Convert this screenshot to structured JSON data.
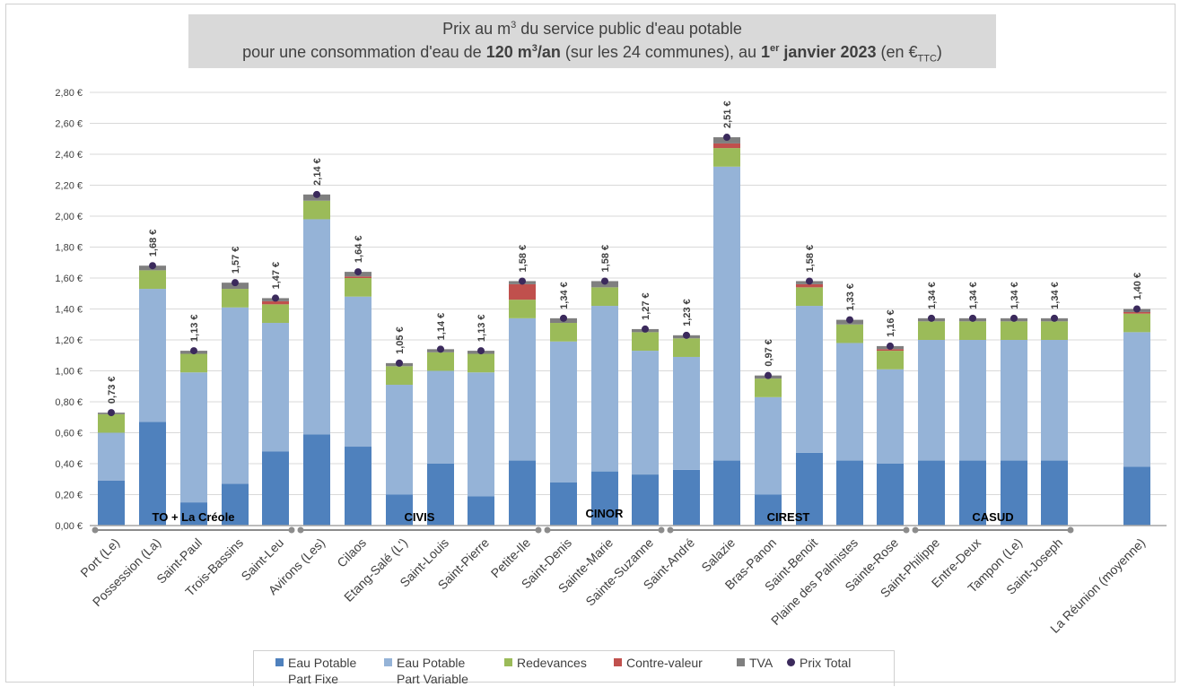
{
  "chart_data": {
    "type": "bar",
    "title": {
      "line1_prefix": "Prix au m",
      "line1_sup": "3",
      "line1_suffix": " du service public d'eau potable",
      "line2_a": "pour une consommation d'eau de ",
      "line2_bold1": "120 m",
      "line2_bold1_sup": "3",
      "line2_bold1_end": "/an",
      "line2_b": " (sur les 24 communes), au ",
      "line2_bold2": "1",
      "line2_bold2_sup": "er",
      "line2_bold2_end": " janvier 2023",
      "line2_c": " (en €",
      "line2_sub": "TTC",
      "line2_d": ")"
    },
    "ylim": [
      0,
      2.8
    ],
    "yticks": [
      "0,00 €",
      "0,20 €",
      "0,40 €",
      "0,60 €",
      "0,80 €",
      "1,00 €",
      "1,20 €",
      "1,40 €",
      "1,60 €",
      "1,80 €",
      "2,00 €",
      "2,20 €",
      "2,40 €",
      "2,60 €",
      "2,80 €"
    ],
    "grid": true,
    "legend_position": "bottom",
    "categories": [
      "Port (Le)",
      "Possession (La)",
      "Saint-Paul",
      "Trois-Bassins",
      "Saint-Leu",
      "Avirons (Les)",
      "Cilaos",
      "Etang-Salé (L')",
      "Saint-Louis",
      "Saint-Pierre",
      "Petite-Ile",
      "Saint-Denis",
      "Sainte-Marie",
      "Sainte-Suzanne",
      "Saint-André",
      "Salazie",
      "Bras-Panon",
      "Saint-Benoit",
      "Plaine des Palmistes",
      "Sainte-Rose",
      "Saint-Philippe",
      "Entre-Deux",
      "Tampon (Le)",
      "Saint-Joseph",
      "La Réunion (moyenne)"
    ],
    "series": [
      {
        "name": "Eau Potable Part Fixe",
        "legend_line1": "Eau Potable",
        "legend_line2": "Part Fixe",
        "color": "#4f81bd",
        "values": [
          0.29,
          0.67,
          0.15,
          0.27,
          0.48,
          0.59,
          0.51,
          0.2,
          0.4,
          0.19,
          0.42,
          0.28,
          0.35,
          0.33,
          0.36,
          0.42,
          0.2,
          0.47,
          0.42,
          0.4,
          0.42,
          0.42,
          0.42,
          0.42,
          0.38
        ]
      },
      {
        "name": "Eau Potable Part Variable",
        "legend_line1": "Eau Potable",
        "legend_line2": "Part Variable",
        "color": "#95b3d7",
        "values": [
          0.31,
          0.86,
          0.84,
          1.14,
          0.83,
          1.39,
          0.97,
          0.71,
          0.6,
          0.8,
          0.92,
          0.91,
          1.07,
          0.8,
          0.73,
          1.9,
          0.63,
          0.95,
          0.76,
          0.61,
          0.78,
          0.78,
          0.78,
          0.78,
          0.87
        ]
      },
      {
        "name": "Redevances",
        "color": "#9bbb59",
        "values": [
          0.12,
          0.12,
          0.12,
          0.12,
          0.12,
          0.12,
          0.12,
          0.12,
          0.12,
          0.12,
          0.12,
          0.12,
          0.12,
          0.12,
          0.12,
          0.12,
          0.12,
          0.12,
          0.12,
          0.12,
          0.12,
          0.12,
          0.12,
          0.12,
          0.12
        ]
      },
      {
        "name": "Contre-valeur",
        "color": "#c0504d",
        "values": [
          0.0,
          0.0,
          0.0,
          0.0,
          0.02,
          0.0,
          0.01,
          0.0,
          0.0,
          0.0,
          0.1,
          0.0,
          0.0,
          0.0,
          0.0,
          0.03,
          0.0,
          0.02,
          0.0,
          0.01,
          0.0,
          0.0,
          0.0,
          0.0,
          0.01
        ]
      },
      {
        "name": "TVA",
        "color": "#7f7f7f",
        "values": [
          0.01,
          0.03,
          0.02,
          0.04,
          0.02,
          0.04,
          0.03,
          0.02,
          0.02,
          0.02,
          0.02,
          0.03,
          0.04,
          0.02,
          0.02,
          0.04,
          0.02,
          0.02,
          0.03,
          0.02,
          0.02,
          0.02,
          0.02,
          0.02,
          0.02
        ]
      }
    ],
    "totals": {
      "name": "Prix Total",
      "color": "#3b2a5c",
      "values": [
        0.73,
        1.68,
        1.13,
        1.57,
        1.47,
        2.14,
        1.64,
        1.05,
        1.14,
        1.13,
        1.58,
        1.34,
        1.58,
        1.27,
        1.23,
        2.51,
        0.97,
        1.58,
        1.33,
        1.16,
        1.34,
        1.34,
        1.34,
        1.34,
        1.4
      ],
      "labels": [
        "0,73 €",
        "1,68 €",
        "1,13 €",
        "1,57 €",
        "1,47 €",
        "2,14 €",
        "1,64 €",
        "1,05 €",
        "1,14 €",
        "1,13 €",
        "1,58 €",
        "1,34 €",
        "1,58 €",
        "1,27 €",
        "1,23 €",
        "2,51 €",
        "0,97 €",
        "1,58 €",
        "1,33 €",
        "1,16 €",
        "1,34 €",
        "1,34 €",
        "1,34 €",
        "1,34 €",
        "1,40 €"
      ]
    },
    "groups": [
      {
        "label": "TO + La Créole",
        "start": 0,
        "end": 4
      },
      {
        "label": "CIVIS",
        "start": 5,
        "end": 10
      },
      {
        "label": "CINOR",
        "start": 11,
        "end": 13
      },
      {
        "label": "CIREST",
        "start": 14,
        "end": 19
      },
      {
        "label": "CASUD",
        "start": 20,
        "end": 23
      }
    ]
  }
}
